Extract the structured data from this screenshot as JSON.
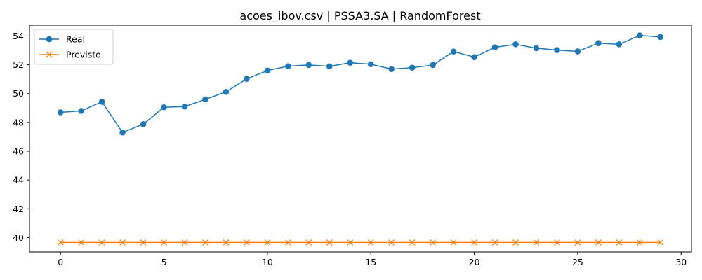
{
  "chart_data": {
    "type": "line",
    "title": "acoes_ibov.csv | PSSA3.SA | RandomForest",
    "xlabel": "",
    "ylabel": "",
    "xlim": [
      -1.5,
      30.5
    ],
    "ylim": [
      39.0,
      54.75
    ],
    "x_ticks": [
      0,
      5,
      10,
      15,
      20,
      25,
      30
    ],
    "y_ticks": [
      40,
      42,
      44,
      46,
      48,
      50,
      52,
      54
    ],
    "grid": false,
    "legend_position": "upper left",
    "x": [
      0,
      1,
      2,
      3,
      4,
      5,
      6,
      7,
      8,
      9,
      10,
      11,
      12,
      13,
      14,
      15,
      16,
      17,
      18,
      19,
      20,
      21,
      22,
      23,
      24,
      25,
      26,
      27,
      28,
      29
    ],
    "series": [
      {
        "name": "Real",
        "color": "#1f77b4",
        "marker": "circle",
        "values": [
          48.7,
          48.8,
          49.43,
          47.3,
          47.88,
          49.05,
          49.1,
          49.6,
          50.12,
          51.02,
          51.6,
          51.9,
          51.99,
          51.89,
          52.14,
          52.04,
          51.7,
          51.8,
          51.98,
          52.92,
          52.53,
          53.21,
          53.42,
          53.15,
          53.02,
          52.93,
          53.5,
          53.42,
          54.04,
          53.93
        ]
      },
      {
        "name": "Previsto",
        "color": "#ff7f0e",
        "marker": "x",
        "values": [
          39.66,
          39.66,
          39.66,
          39.66,
          39.66,
          39.66,
          39.66,
          39.66,
          39.66,
          39.66,
          39.66,
          39.66,
          39.66,
          39.66,
          39.66,
          39.66,
          39.66,
          39.66,
          39.66,
          39.66,
          39.66,
          39.66,
          39.66,
          39.66,
          39.66,
          39.66,
          39.66,
          39.66,
          39.66,
          39.66
        ]
      }
    ]
  }
}
